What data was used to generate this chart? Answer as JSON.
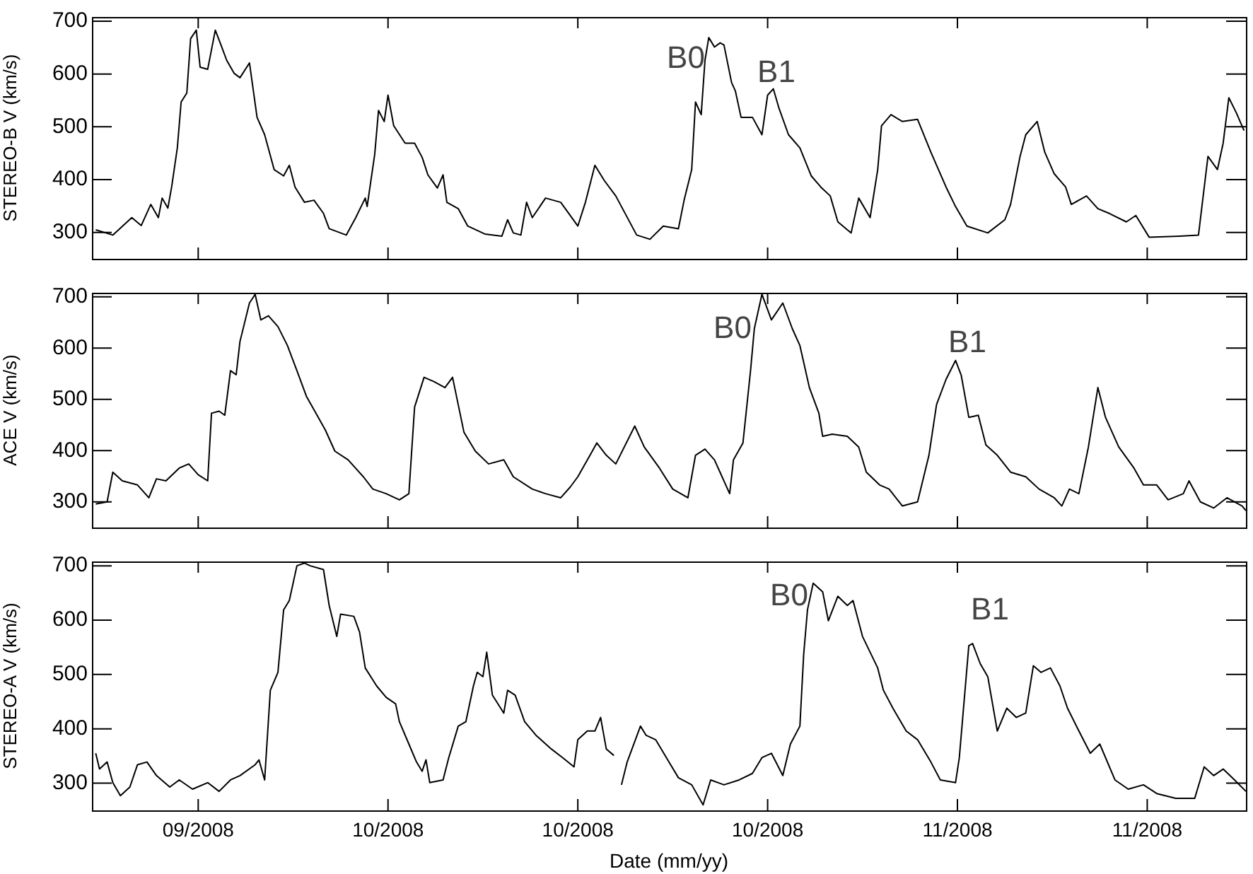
{
  "chart_data": [
    {
      "type": "line",
      "ylabel": "STEREO-B V (km/s)",
      "color": "#000000",
      "marker": "none",
      "line_style": "solid",
      "tick_labels": "y",
      "xlim": [
        "2008-09-19T09:36",
        "2008-11-19T04:48"
      ],
      "xticks": [
        {
          "value": "2008-09-25",
          "label": null
        },
        {
          "value": "2008-10-05",
          "label": null
        },
        {
          "value": "2008-10-15",
          "label": null
        },
        {
          "value": "2008-10-25",
          "label": null
        },
        {
          "value": "2008-11-04",
          "label": null
        },
        {
          "value": "2008-11-14",
          "label": null
        }
      ],
      "ylim": [
        250,
        708
      ],
      "yticks": [
        300,
        400,
        500,
        600,
        700
      ],
      "x": [
        "2008-09-19T14:24",
        "2008-09-20T12:00",
        "2008-09-21T12:00",
        "2008-09-22T00:00",
        "2008-09-22T12:00",
        "2008-09-22T21:36",
        "2008-09-23T02:24",
        "2008-09-23T09:36",
        "2008-09-23T14:24",
        "2008-09-23T21:36",
        "2008-09-24T02:24",
        "2008-09-24T09:36",
        "2008-09-24T14:24",
        "2008-09-24T21:36",
        "2008-09-25T02:24",
        "2008-09-25T12:00",
        "2008-09-25T21:36",
        "2008-09-26T04:48",
        "2008-09-26T12:00",
        "2008-09-26T21:36",
        "2008-09-27T04:48",
        "2008-09-27T16:48",
        "2008-09-28T02:24",
        "2008-09-28T12:00",
        "2008-09-29T00:00",
        "2008-09-29T12:00",
        "2008-09-29T19:12",
        "2008-09-30T02:24",
        "2008-09-30T14:24",
        "2008-10-01T02:24",
        "2008-10-01T14:24",
        "2008-10-01T21:36",
        "2008-10-02T19:12",
        "2008-10-03T07:12",
        "2008-10-03T19:12",
        "2008-10-03T21:36",
        "2008-10-04T07:12",
        "2008-10-04T12:00",
        "2008-10-04T19:12",
        "2008-10-05T00:00",
        "2008-10-05T07:12",
        "2008-10-05T21:36",
        "2008-10-06T09:36",
        "2008-10-06T19:12",
        "2008-10-07T02:24",
        "2008-10-07T14:24",
        "2008-10-07T21:36",
        "2008-10-08T02:24",
        "2008-10-08T16:48",
        "2008-10-09T04:48",
        "2008-10-10T02:24",
        "2008-10-11T00:00",
        "2008-10-11T07:12",
        "2008-10-11T14:24",
        "2008-10-12T00:00",
        "2008-10-12T07:12",
        "2008-10-12T14:24",
        "2008-10-13T07:12",
        "2008-10-14T02:24",
        "2008-10-15T00:00",
        "2008-10-15T09:36",
        "2008-10-15T21:36",
        "2008-10-16T09:36",
        "2008-10-17T00:00",
        "2008-10-18T02:24",
        "2008-10-18T19:12",
        "2008-10-19T12:00",
        "2008-10-20T07:12",
        "2008-10-20T14:24",
        "2008-10-21T00:00",
        "2008-10-21T04:48",
        "2008-10-21T12:00",
        "2008-10-21T16:48",
        "2008-10-21T21:36",
        "2008-10-22T04:48",
        "2008-10-22T12:00",
        "2008-10-22T16:48",
        "2008-10-23T02:24",
        "2008-10-23T07:12",
        "2008-10-23T14:24",
        "2008-10-24T04:48",
        "2008-10-24T16:48",
        "2008-10-25T00:00",
        "2008-10-25T07:12",
        "2008-10-25T14:24",
        "2008-10-26T02:24",
        "2008-10-26T16:48",
        "2008-10-27T07:12",
        "2008-10-27T19:12",
        "2008-10-28T07:12",
        "2008-10-28T16:48",
        "2008-10-29T09:36",
        "2008-10-29T19:12",
        "2008-10-30T09:36",
        "2008-10-30T19:12",
        "2008-10-31T00:00",
        "2008-10-31T12:00",
        "2008-11-01T02:24",
        "2008-11-01T21:36",
        "2008-11-02T14:24",
        "2008-11-03T09:36",
        "2008-11-03T21:36",
        "2008-11-04T12:00",
        "2008-11-05T14:24",
        "2008-11-06T12:00",
        "2008-11-06T19:12",
        "2008-11-07T07:12",
        "2008-11-07T14:24",
        "2008-11-08T04:48",
        "2008-11-08T14:24",
        "2008-11-09T02:24",
        "2008-11-09T16:48",
        "2008-11-10T00:00",
        "2008-11-10T19:12",
        "2008-11-11T09:36",
        "2008-11-12T00:00",
        "2008-11-12T21:36",
        "2008-11-13T09:36",
        "2008-11-14T02:24",
        "2008-11-15T16:48",
        "2008-11-16T16:48",
        "2008-11-17T04:48",
        "2008-11-17T16:48",
        "2008-11-18T00:00",
        "2008-11-18T07:12",
        "2008-11-18T16:48",
        "2008-11-19T02:24"
      ],
      "values": [
        305,
        295,
        328,
        313,
        353,
        328,
        365,
        346,
        386,
        460,
        547,
        564,
        667,
        683,
        613,
        609,
        683,
        655,
        626,
        601,
        593,
        621,
        518,
        485,
        419,
        407,
        427,
        386,
        357,
        361,
        336,
        307,
        295,
        328,
        365,
        349,
        448,
        531,
        510,
        560,
        502,
        469,
        469,
        442,
        409,
        384,
        409,
        357,
        345,
        312,
        297,
        293,
        324,
        299,
        295,
        357,
        328,
        365,
        357,
        312,
        357,
        427,
        398,
        369,
        295,
        287,
        312,
        307,
        361,
        419,
        547,
        523,
        626,
        669,
        651,
        659,
        655,
        584,
        568,
        518,
        518,
        485,
        560,
        572,
        535,
        485,
        460,
        407,
        386,
        369,
        320,
        299,
        365,
        328,
        419,
        502,
        523,
        510,
        514,
        452,
        386,
        349,
        312,
        299,
        324,
        353,
        444,
        485,
        510,
        452,
        411,
        386,
        353,
        369,
        345,
        336,
        320,
        332,
        291,
        293,
        295,
        444,
        419,
        469,
        555,
        526,
        493
      ],
      "annotations": [
        "B0",
        "B1"
      ]
    },
    {
      "type": "line",
      "ylabel": "ACE V (km/s)",
      "color": "#000000",
      "marker": "none",
      "line_style": "solid",
      "tick_labels": "y",
      "xlim": [
        "2008-09-19T09:36",
        "2008-11-19T04:48"
      ],
      "xticks": [
        {
          "value": "2008-09-25",
          "label": null
        },
        {
          "value": "2008-10-05",
          "label": null
        },
        {
          "value": "2008-10-15",
          "label": null
        },
        {
          "value": "2008-10-25",
          "label": null
        },
        {
          "value": "2008-11-04",
          "label": null
        },
        {
          "value": "2008-11-14",
          "label": null
        }
      ],
      "ylim": [
        250,
        708
      ],
      "yticks": [
        300,
        400,
        500,
        600,
        700
      ],
      "x": [
        "2008-09-19T14:24",
        "2008-09-20T04:48",
        "2008-09-20T12:00",
        "2008-09-21T00:00",
        "2008-09-21T19:12",
        "2008-09-22T09:36",
        "2008-09-22T19:12",
        "2008-09-23T07:12",
        "2008-09-24T00:00",
        "2008-09-24T12:00",
        "2008-09-25T00:00",
        "2008-09-25T12:00",
        "2008-09-25T16:48",
        "2008-09-26T02:24",
        "2008-09-26T09:36",
        "2008-09-26T16:48",
        "2008-09-27T00:00",
        "2008-09-27T04:48",
        "2008-09-27T16:48",
        "2008-09-28T00:00",
        "2008-09-28T07:12",
        "2008-09-28T16:48",
        "2008-09-29T04:48",
        "2008-09-29T16:48",
        "2008-09-30T04:48",
        "2008-09-30T16:48",
        "2008-10-01T04:48",
        "2008-10-01T16:48",
        "2008-10-02T04:48",
        "2008-10-02T21:36",
        "2008-10-03T16:48",
        "2008-10-04T04:48",
        "2008-10-04T21:36",
        "2008-10-05T14:24",
        "2008-10-06T02:24",
        "2008-10-06T09:36",
        "2008-10-06T21:36",
        "2008-10-07T09:36",
        "2008-10-08T00:00",
        "2008-10-08T09:36",
        "2008-10-09T00:00",
        "2008-10-09T14:24",
        "2008-10-10T07:12",
        "2008-10-11T02:24",
        "2008-10-11T14:24",
        "2008-10-12T14:24",
        "2008-10-13T07:12",
        "2008-10-14T02:24",
        "2008-10-14T14:24",
        "2008-10-15T00:00",
        "2008-10-15T16:48",
        "2008-10-16T00:00",
        "2008-10-16T12:00",
        "2008-10-17T00:00",
        "2008-10-18T00:00",
        "2008-10-18T12:00",
        "2008-10-19T07:12",
        "2008-10-20T00:00",
        "2008-10-20T19:12",
        "2008-10-21T04:48",
        "2008-10-21T16:48",
        "2008-10-22T04:48",
        "2008-10-23T00:00",
        "2008-10-23T04:48",
        "2008-10-23T16:48",
        "2008-10-24T02:24",
        "2008-10-24T07:12",
        "2008-10-24T16:48",
        "2008-10-25T04:48",
        "2008-10-25T19:12",
        "2008-10-26T07:12",
        "2008-10-26T16:48",
        "2008-10-27T04:48",
        "2008-10-27T16:48",
        "2008-10-27T21:36",
        "2008-10-28T09:36",
        "2008-10-29T04:48",
        "2008-10-29T19:12",
        "2008-10-30T04:48",
        "2008-10-30T21:36",
        "2008-10-31T09:36",
        "2008-11-01T02:24",
        "2008-11-01T21:36",
        "2008-11-02T12:00",
        "2008-11-02T21:36",
        "2008-11-03T09:36",
        "2008-11-03T21:36",
        "2008-11-04T04:48",
        "2008-11-04T14:24",
        "2008-11-05T02:24",
        "2008-11-05T12:00",
        "2008-11-06T02:24",
        "2008-11-06T19:12",
        "2008-11-07T14:24",
        "2008-11-08T07:12",
        "2008-11-09T02:24",
        "2008-11-09T12:00",
        "2008-11-09T21:36",
        "2008-11-10T09:36",
        "2008-11-10T21:36",
        "2008-11-11T09:36",
        "2008-11-11T19:12",
        "2008-11-12T12:00",
        "2008-11-13T07:12",
        "2008-11-13T19:12",
        "2008-11-14T12:00",
        "2008-11-15T02:24",
        "2008-11-15T21:36",
        "2008-11-16T04:48",
        "2008-11-16T19:12",
        "2008-11-17T12:00",
        "2008-11-18T04:48",
        "2008-11-19T00:00",
        "2008-11-19T04:48"
      ],
      "values": [
        296,
        300,
        358,
        341,
        333,
        308,
        345,
        341,
        366,
        374,
        353,
        341,
        473,
        477,
        469,
        556,
        548,
        613,
        688,
        705,
        655,
        663,
        642,
        605,
        556,
        506,
        473,
        440,
        399,
        382,
        349,
        325,
        316,
        304,
        316,
        485,
        543,
        535,
        523,
        543,
        436,
        399,
        374,
        382,
        349,
        325,
        316,
        308,
        329,
        349,
        395,
        415,
        391,
        374,
        448,
        407,
        366,
        325,
        308,
        391,
        403,
        382,
        316,
        382,
        415,
        556,
        638,
        705,
        655,
        688,
        638,
        605,
        523,
        473,
        428,
        432,
        428,
        407,
        358,
        333,
        325,
        292,
        300,
        391,
        490,
        539,
        576,
        547,
        465,
        469,
        411,
        391,
        358,
        349,
        325,
        308,
        292,
        325,
        316,
        407,
        523,
        465,
        407,
        366,
        333,
        333,
        304,
        316,
        341,
        300,
        288,
        308,
        292,
        283
      ],
      "annotations": [
        "B0",
        "B1"
      ]
    },
    {
      "type": "line",
      "ylabel": "STEREO-A V (km/s)",
      "xlabel": "Date (mm/yy)",
      "color": "#000000",
      "marker": "none",
      "line_style": "solid",
      "xlim": [
        "2008-09-19T09:36",
        "2008-11-19T04:48"
      ],
      "xticks": [
        {
          "value": "2008-09-25",
          "label": "09/2008"
        },
        {
          "value": "2008-10-05",
          "label": "10/2008"
        },
        {
          "value": "2008-10-15",
          "label": "10/2008"
        },
        {
          "value": "2008-10-25",
          "label": "10/2008"
        },
        {
          "value": "2008-11-04",
          "label": "11/2008"
        },
        {
          "value": "2008-11-14",
          "label": "11/2008"
        }
      ],
      "ylim": [
        250,
        708
      ],
      "yticks": [
        300,
        400,
        500,
        600,
        700
      ],
      "x": [
        "2008-09-19T14:24",
        "2008-09-19T19:12",
        "2008-09-20T04:48",
        "2008-09-20T12:00",
        "2008-09-20T21:36",
        "2008-09-21T09:36",
        "2008-09-21T19:12",
        "2008-09-22T07:12",
        "2008-09-22T19:12",
        "2008-09-23T12:00",
        "2008-09-24T00:00",
        "2008-09-24T16:48",
        "2008-09-25T12:00",
        "2008-09-26T02:24",
        "2008-09-26T16:48",
        "2008-09-27T04:48",
        "2008-09-28T00:00",
        "2008-09-28T04:48",
        "2008-09-28T12:00",
        "2008-09-28T19:12",
        "2008-09-29T04:48",
        "2008-09-29T12:00",
        "2008-09-29T19:12",
        "2008-09-30T04:48",
        "2008-09-30T14:24",
        "2008-09-30T21:36",
        "2008-10-01T14:24",
        "2008-10-01T21:36",
        "2008-10-02T07:12",
        "2008-10-02T12:00",
        "2008-10-03T04:48",
        "2008-10-03T12:00",
        "2008-10-03T19:12",
        "2008-10-04T09:36",
        "2008-10-04T21:36",
        "2008-10-05T09:36",
        "2008-10-05T14:24",
        "2008-10-06T02:24",
        "2008-10-06T12:00",
        "2008-10-06T19:12",
        "2008-10-07T00:00",
        "2008-10-07T04:48",
        "2008-10-07T21:36",
        "2008-10-08T04:48",
        "2008-10-08T16:48",
        "2008-10-09T02:24",
        "2008-10-09T12:00",
        "2008-10-09T16:48",
        "2008-10-10T00:00",
        "2008-10-10T04:48",
        "2008-10-10T12:00",
        "2008-10-11T02:24",
        "2008-10-11T07:12",
        "2008-10-11T16:48",
        "2008-10-12T04:48",
        "2008-10-12T19:12",
        "2008-10-13T14:24",
        "2008-10-14T04:48",
        "2008-10-14T19:12",
        "2008-10-15T00:00",
        "2008-10-15T12:00",
        "2008-10-15T21:36",
        "2008-10-16T04:48",
        "2008-10-16T12:00",
        "2008-10-16T21:36",
        "2008-10-17T02:24",
        "2008-10-17T07:12",
        "2008-10-17T14:24",
        "2008-10-18T07:12",
        "2008-10-18T14:24",
        "2008-10-19T02:24",
        "2008-10-19T19:12",
        "2008-10-20T07:12",
        "2008-10-21T00:00",
        "2008-10-21T14:24",
        "2008-10-22T00:00",
        "2008-10-22T16:48",
        "2008-10-23T12:00",
        "2008-10-24T04:48",
        "2008-10-24T16:48",
        "2008-10-25T04:48",
        "2008-10-25T19:12",
        "2008-10-26T04:48",
        "2008-10-26T16:48",
        "2008-10-26T21:36",
        "2008-10-27T02:24",
        "2008-10-27T09:36",
        "2008-10-27T21:36",
        "2008-10-28T04:48",
        "2008-10-28T16:48",
        "2008-10-29T04:48",
        "2008-10-29T12:00",
        "2008-10-30T00:00",
        "2008-10-30T19:12",
        "2008-10-31T02:24",
        "2008-10-31T14:24",
        "2008-11-01T07:12",
        "2008-11-01T21:36",
        "2008-11-02T14:24",
        "2008-11-03T02:24",
        "2008-11-03T21:36",
        "2008-11-04T02:24",
        "2008-11-04T14:24",
        "2008-11-04T19:12",
        "2008-11-05T04:48",
        "2008-11-05T14:24",
        "2008-11-06T02:24",
        "2008-11-06T14:24",
        "2008-11-07T02:24",
        "2008-11-07T14:24",
        "2008-11-08T00:00",
        "2008-11-08T09:36",
        "2008-11-08T21:36",
        "2008-11-09T09:36",
        "2008-11-09T19:12",
        "2008-11-10T09:36",
        "2008-11-11T00:00",
        "2008-11-11T12:00",
        "2008-11-12T07:12",
        "2008-11-13T00:00",
        "2008-11-13T19:12",
        "2008-11-14T12:00",
        "2008-11-15T12:00",
        "2008-11-16T12:00",
        "2008-11-17T00:00",
        "2008-11-17T12:00",
        "2008-11-18T00:00",
        "2008-11-18T14:24",
        "2008-11-19T04:48"
      ],
      "values": [
        355,
        326,
        339,
        301,
        277,
        293,
        334,
        339,
        314,
        293,
        306,
        289,
        301,
        285,
        306,
        314,
        334,
        343,
        306,
        471,
        504,
        619,
        636,
        700,
        705,
        700,
        693,
        627,
        570,
        611,
        607,
        578,
        512,
        479,
        458,
        446,
        413,
        372,
        339,
        322,
        343,
        301,
        306,
        347,
        405,
        413,
        479,
        504,
        496,
        541,
        462,
        429,
        471,
        462,
        413,
        388,
        363,
        347,
        330,
        380,
        396,
        396,
        421,
        363,
        351,
        null,
        297,
        339,
        405,
        388,
        380,
        339,
        310,
        297,
        260,
        306,
        297,
        306,
        318,
        347,
        355,
        314,
        372,
        405,
        537,
        619,
        668,
        652,
        599,
        644,
        627,
        636,
        570,
        512,
        471,
        438,
        396,
        380,
        339,
        306,
        301,
        347,
        553,
        557,
        520,
        496,
        396,
        438,
        421,
        429,
        516,
        504,
        512,
        479,
        438,
        396,
        355,
        372,
        306,
        289,
        297,
        281,
        272,
        272,
        330,
        314,
        326,
        306,
        285
      ],
      "annotations": [
        "B0",
        "B1"
      ]
    }
  ]
}
